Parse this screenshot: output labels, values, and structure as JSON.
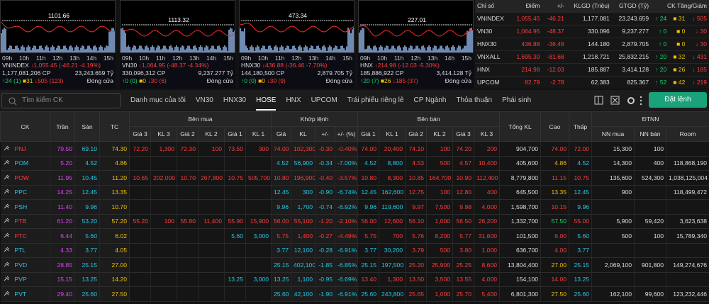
{
  "times": [
    "09h",
    "10h",
    "11h",
    "12h",
    "13h",
    "14h",
    "15h"
  ],
  "indices": [
    {
      "name": "VNINDEX",
      "ref_level": "1101.66",
      "change": "1,055.45 (-46.21 -4.19%)",
      "volume": "1,177,081,206 CP",
      "value": "23,243.659 Tỷ",
      "up": "24 (1)",
      "ref": "31",
      "down": "505 (123)",
      "status": "Đóng cửa"
    },
    {
      "name": "VN30",
      "ref_level": "1113.32",
      "change": "1,064.95 (-48.37 -4.34%)",
      "volume": "330,096,312 CP",
      "value": "9,237.277 Tỷ",
      "up": "0 (0)",
      "ref": "0",
      "down": "30 (6)",
      "status": "Đóng cửa"
    },
    {
      "name": "HNX30",
      "ref_level": "473.34",
      "change": "436.88 (-36.46 -7.70%)",
      "volume": "144,180,500 CP",
      "value": "2,879.705 Tỷ",
      "up": "0 (0)",
      "ref": "0",
      "down": "30 (9)",
      "status": "Đóng cửa"
    },
    {
      "name": "HNX",
      "ref_level": "227.01",
      "change": "214.98 (-12.03 -5.30%)",
      "volume": "185,886,922 CP",
      "value": "3,414.128 Tỷ",
      "up": "20 (7)",
      "ref": "26",
      "down": "185 (37)",
      "status": "Đóng cửa"
    }
  ],
  "index_table": {
    "headers": [
      "Chỉ số",
      "Điểm",
      "+/-",
      "KLGD (Triệu)",
      "GTGD (Tỷ)",
      "CK Tăng/Giảm"
    ],
    "rows": [
      [
        "VNINDEX",
        "1,055.45",
        "-46.21",
        "1,177.081",
        "23,243.659",
        "24",
        "31",
        "505"
      ],
      [
        "VN30",
        "1,064.95",
        "-48.37",
        "330.096",
        "9,237.277",
        "0",
        "0",
        "30"
      ],
      [
        "HNX30",
        "436.88",
        "-36.46",
        "144.180",
        "2,879.705",
        "0",
        "0",
        "30"
      ],
      [
        "VNXALL",
        "1,695.30",
        "-81.68",
        "1,218.721",
        "25,832.215",
        "20",
        "32",
        "431"
      ],
      [
        "HNX",
        "214.98",
        "-12.03",
        "185.887",
        "3,414.128",
        "20",
        "26",
        "185"
      ],
      [
        "UPCOM",
        "82.79",
        "-2.78",
        "62.383",
        "825.367",
        "52",
        "42",
        "219"
      ]
    ]
  },
  "toolbar": {
    "search": "Tìm kiếm CK",
    "tabs": [
      "Danh mục của tôi",
      "VN30",
      "HNX30",
      "HOSE",
      "HNX",
      "UPCOM",
      "Trái phiếu riêng lẻ",
      "CP Ngành",
      "Thỏa thuận",
      "Phái sinh"
    ],
    "active_tab": "HOSE",
    "button": "Đặt lệnh"
  },
  "board": {
    "header_top": [
      "CK",
      "Trần",
      "Sàn",
      "TC",
      "Bên mua",
      "Khớp lệnh",
      "Bên bán",
      "Tổng KL",
      "Cao",
      "Thấp",
      "ĐTNN"
    ],
    "header_sub": [
      "Giá 3",
      "KL 3",
      "Giá 2",
      "KL 2",
      "Giá 1",
      "KL 1",
      "Giá",
      "KL",
      "+/-",
      "+/- (%)",
      "Giá 1",
      "KL 1",
      "Giá 2",
      "KL 2",
      "Giá 3",
      "KL 3",
      "NN mua",
      "NN bán",
      "Room"
    ],
    "rows": [
      [
        "PNJ",
        "79.50",
        "69.10",
        "74.30",
        "72.20",
        "1,300",
        "72.30",
        "100",
        "73.50",
        "300",
        "74.00",
        "102,300",
        "-0.30",
        "-0.40%",
        "74.00",
        "20,400",
        "74.10",
        "100",
        "74.20",
        "200",
        "904,700",
        "74.00",
        "72.00",
        "15,300",
        "100",
        null
      ],
      [
        "POM",
        "5.20",
        "4.52",
        "4.86",
        null,
        null,
        null,
        null,
        null,
        null,
        "4.52",
        "56,900",
        "-0.34",
        "-7.00%",
        "4.52",
        "8,800",
        "4.53",
        "500",
        "4.57",
        "10,400",
        "405,600",
        "4.86",
        "4.52",
        "14,300",
        "400",
        "118,868,190"
      ],
      [
        "POW",
        "11.95",
        "10.45",
        "11.20",
        "10.65",
        "202,000",
        "10.70",
        "267,800",
        "10.75",
        "505,700",
        "10.80",
        "196,900",
        "-0.40",
        "-3.57%",
        "10.80",
        "8,300",
        "10.85",
        "164,700",
        "10.90",
        "112,400",
        "8,779,800",
        "11.15",
        "10.75",
        "135,600",
        "524,300",
        "1,038,125,004"
      ],
      [
        "PPC",
        "14.25",
        "12.45",
        "13.35",
        null,
        null,
        null,
        null,
        null,
        null,
        "12.45",
        "300",
        "-0.90",
        "-6.74%",
        "12.45",
        "162,600",
        "12.75",
        "100",
        "12.80",
        "400",
        "645,500",
        "13.35",
        "12.45",
        "900",
        null,
        "118,499,472"
      ],
      [
        "PSH",
        "11.40",
        "9.96",
        "10.70",
        null,
        null,
        null,
        null,
        null,
        null,
        "9.96",
        "1,700",
        "-0.74",
        "-6.92%",
        "9.96",
        "119,600",
        "9.97",
        "7,500",
        "9.98",
        "4,000",
        "1,598,700",
        "10.15",
        "9.96",
        null,
        null,
        null
      ],
      [
        "PTB",
        "61.20",
        "53.20",
        "57.20",
        "55.20",
        "100",
        "55.80",
        "11,400",
        "55.90",
        "15,900",
        "56.00",
        "55,100",
        "-1.20",
        "-2.10%",
        "56.00",
        "12,600",
        "56.10",
        "1,000",
        "56.50",
        "26,200",
        "1,332,700",
        "57.50",
        "55.00",
        "5,900",
        "59,420",
        "3,623,638"
      ],
      [
        "PTC",
        "6.44",
        "5.60",
        "6.02",
        null,
        null,
        null,
        null,
        "5.60",
        "3,000",
        "5.75",
        "1,400",
        "-0.27",
        "-4.49%",
        "5.75",
        "700",
        "5.76",
        "8,200",
        "5.77",
        "31,600",
        "101,500",
        "6.00",
        "5.60",
        "500",
        "100",
        "15,789,340"
      ],
      [
        "PTL",
        "4.33",
        "3.77",
        "4.05",
        null,
        null,
        null,
        null,
        null,
        null,
        "3.77",
        "12,100",
        "-0.28",
        "-6.91%",
        "3.77",
        "30,200",
        "3.79",
        "500",
        "3.80",
        "1,000",
        "636,700",
        "4.00",
        "3.77",
        null,
        null,
        null
      ],
      [
        "PVD",
        "28.85",
        "25.15",
        "27.00",
        null,
        null,
        null,
        null,
        null,
        null,
        "25.15",
        "402,100",
        "-1.85",
        "-6.85%",
        "25.15",
        "197,500",
        "25.20",
        "25,900",
        "25.25",
        "8,600",
        "13,804,400",
        "27.00",
        "25.15",
        "2,069,100",
        "901,800",
        "149,274,676"
      ],
      [
        "PVP",
        "15.15",
        "13.25",
        "14.20",
        null,
        null,
        null,
        null,
        "13.25",
        "3,000",
        "13.25",
        "1,100",
        "-0.95",
        "-6.69%",
        "13.40",
        "1,300",
        "13.50",
        "3,500",
        "13.55",
        "4,000",
        "154,100",
        "14.00",
        "13.25",
        null,
        null,
        null
      ],
      [
        "PVT",
        "29.40",
        "25.60",
        "27.50",
        null,
        null,
        null,
        null,
        null,
        null,
        "25.60",
        "42,100",
        "-1.90",
        "-6.91%",
        "25.60",
        "243,800",
        "25.65",
        "1,000",
        "25.70",
        "5,400",
        "6,801,300",
        "27.50",
        "25.60",
        "162,100",
        "99,600",
        "123,232,446"
      ]
    ]
  }
}
